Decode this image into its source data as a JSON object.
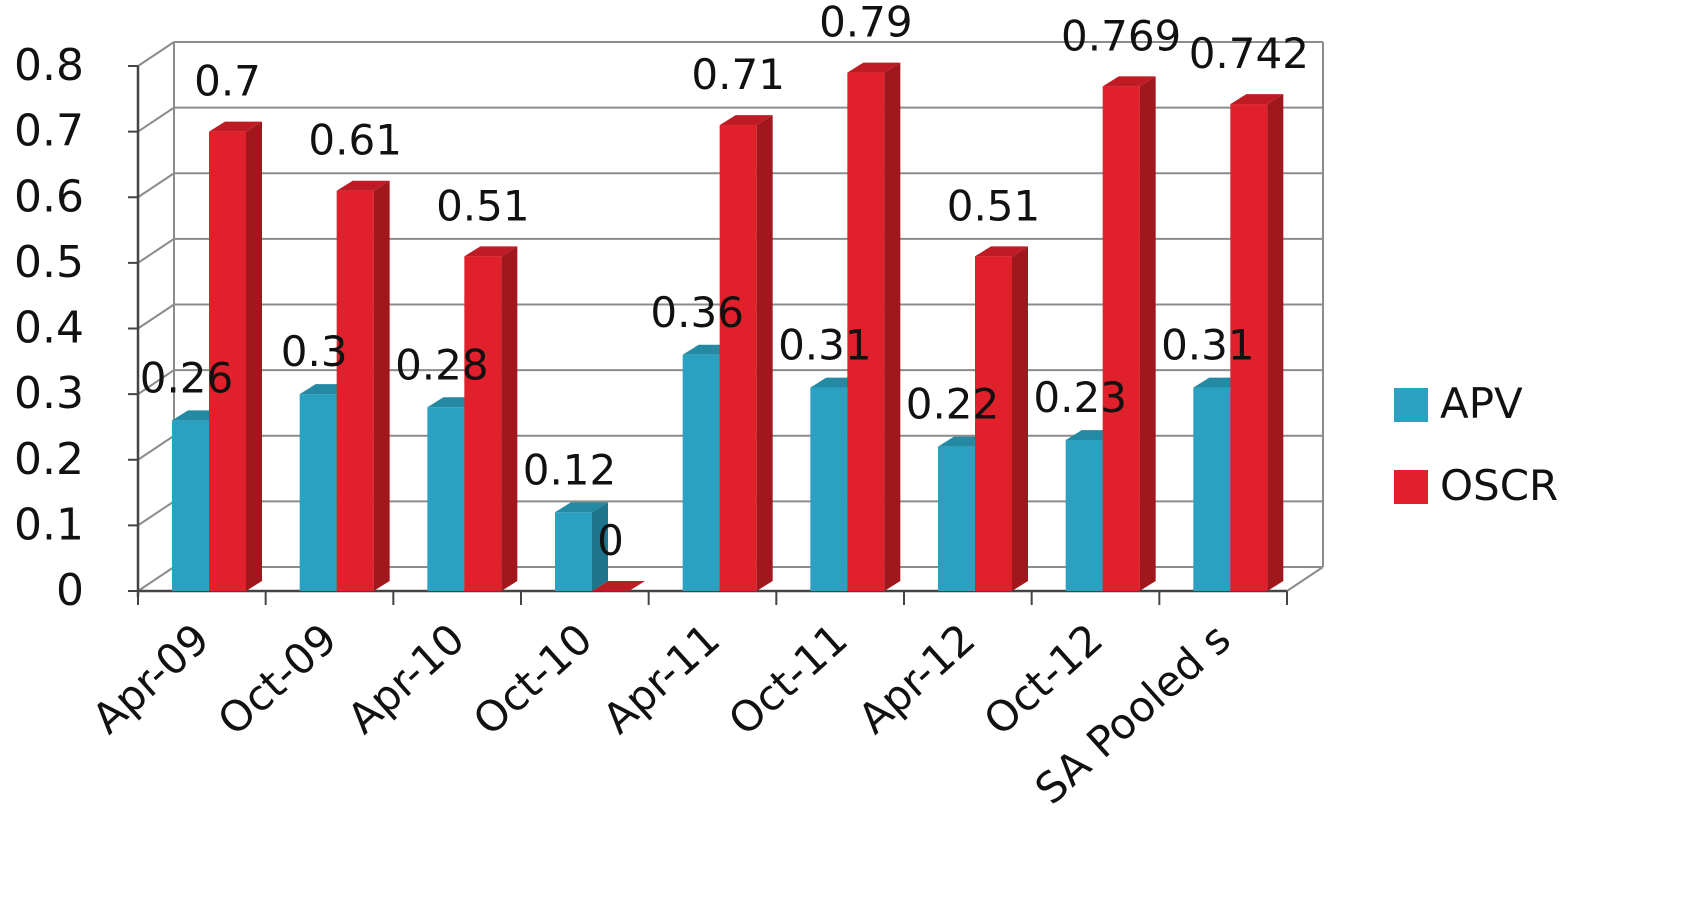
{
  "chart_data": {
    "type": "bar",
    "style": "3d-clustered-column",
    "categories": [
      "Apr-09",
      "Oct-09",
      "Apr-10",
      "Oct-10",
      "Apr-11",
      "Oct-11",
      "Apr-12",
      "Oct-12",
      "SA Pooled s"
    ],
    "series": [
      {
        "name": "APV",
        "color": "#2aa1c0",
        "values": [
          0.26,
          0.3,
          0.28,
          0.12,
          0.36,
          0.31,
          0.22,
          0.23,
          0.31
        ],
        "labels": [
          "0.26",
          "0.3",
          "0.28",
          "0.12",
          "0.36",
          "0.31",
          "0.22",
          "0.23",
          "0.31"
        ]
      },
      {
        "name": "OSCR",
        "color": "#e0202a",
        "values": [
          0.7,
          0.61,
          0.51,
          0,
          0.71,
          0.79,
          0.51,
          0.769,
          0.742
        ],
        "labels": [
          "0.7",
          "0.61",
          "0.51",
          "0",
          "0.71",
          "0.79",
          "0.51",
          "0.769",
          "0.742"
        ]
      }
    ],
    "y_ticks": [
      "0",
      "0.1",
      "0.2",
      "0.3",
      "0.4",
      "0.5",
      "0.6",
      "0.7",
      "0.8"
    ],
    "ylim": [
      0,
      0.8
    ],
    "grid": true,
    "legend_position": "right"
  }
}
